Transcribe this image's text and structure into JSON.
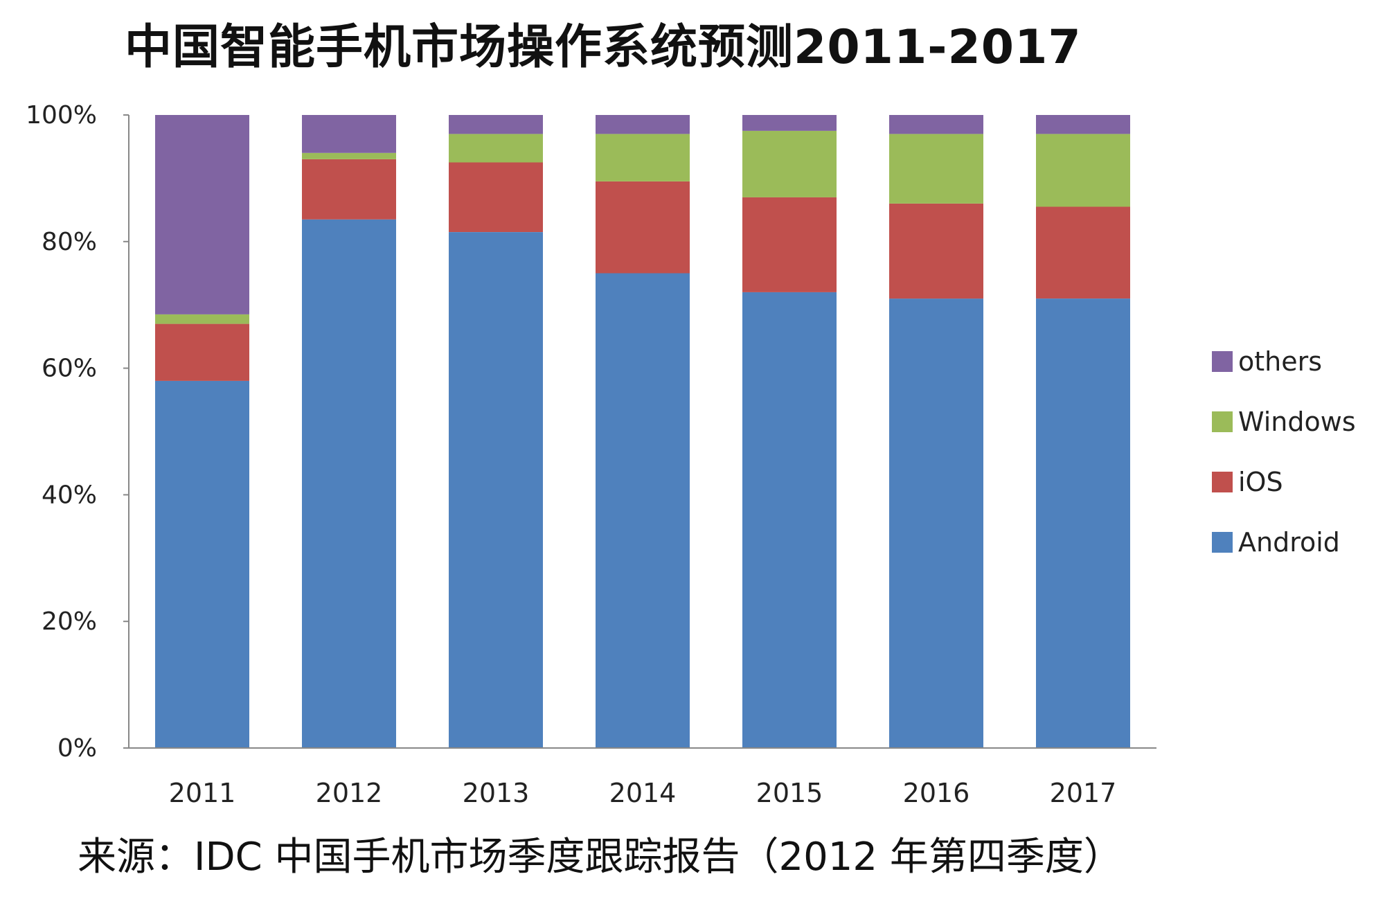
{
  "chart_data": {
    "type": "bar",
    "stacked": true,
    "title": "中国智能手机市场操作系统预测2011-2017",
    "source_note": "来源：IDC 中国手机市场季度跟踪报告（2012 年第四季度）",
    "categories": [
      "2011",
      "2012",
      "2013",
      "2014",
      "2015",
      "2016",
      "2017"
    ],
    "y_ticks": [
      "0%",
      "20%",
      "40%",
      "60%",
      "80%",
      "100%"
    ],
    "ylim": [
      0,
      100
    ],
    "grid": false,
    "legend_position": "right",
    "legend_order": [
      "others",
      "Windows",
      "iOS",
      "Android"
    ],
    "series": [
      {
        "name": "Android",
        "color": "#4f81bd",
        "values": [
          58,
          83.5,
          81.5,
          75,
          72,
          71,
          71
        ]
      },
      {
        "name": "iOS",
        "color": "#c0504d",
        "values": [
          9,
          9.5,
          11,
          14.5,
          15,
          15,
          14.5
        ]
      },
      {
        "name": "Windows",
        "color": "#9bbb59",
        "values": [
          1.5,
          1,
          4.5,
          7.5,
          10.5,
          11,
          11.5
        ]
      },
      {
        "name": "others",
        "color": "#8064a2",
        "values": [
          31.5,
          6,
          3,
          3,
          2.5,
          3,
          3
        ]
      }
    ]
  }
}
